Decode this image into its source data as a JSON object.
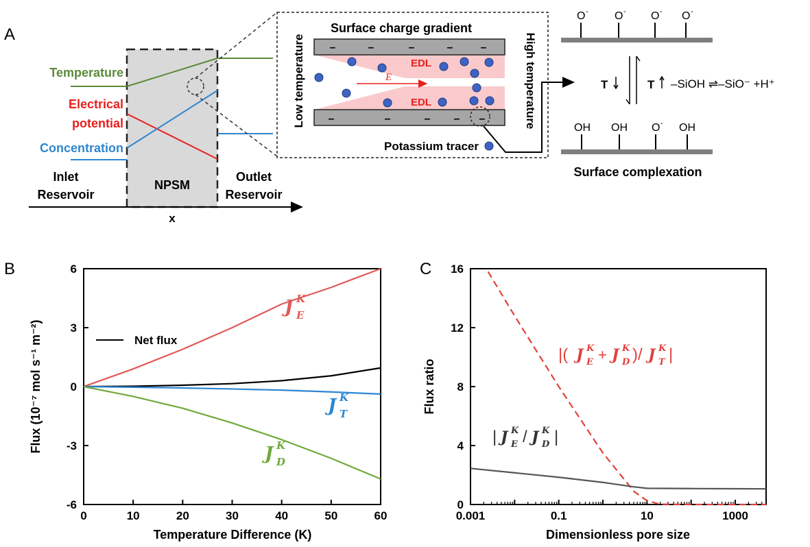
{
  "panel_a": {
    "panel_label": "A",
    "left_labels": {
      "temperature": "Temperature",
      "electrical_1": "Electrical",
      "electrical_2": "potential",
      "concentration": "Concentration"
    },
    "regions": {
      "inlet_1": "Inlet",
      "inlet_2": "Reservoir",
      "npsm": "NPSM",
      "outlet_1": "Outlet",
      "outlet_2": "Reservoir",
      "x_axis": "x"
    },
    "channel": {
      "title": "Surface charge gradient",
      "low_temperature": "Low temperature",
      "high_temperature": "High temperature",
      "edl_top": "EDL",
      "edl_bottom": "EDL",
      "field": "E",
      "tracer": "Potassium tracer",
      "minus": "–"
    },
    "complexation": {
      "o_minus": "O",
      "oh": "OH",
      "minus_sup": "-",
      "t_down": "T",
      "t_up": "T",
      "reaction": "–SiOH ⇌–SiO⁻  +H⁺",
      "title": "Surface complexation"
    },
    "colors": {
      "temperature": "#5b8a3a",
      "electrical": "#e8201c",
      "concentration": "#2e86d1",
      "npsm_fill": "#d9d9d9",
      "edl_fill": "#f9c9cc",
      "tracer": "#3d64c5",
      "wall": "#a6a6a6"
    }
  },
  "chart_data": [
    {
      "panel_label": "B",
      "type": "line",
      "xlabel": "Temperature Difference (K)",
      "ylabel": "Flux (10⁻⁷ mol s⁻¹ m⁻²)",
      "xlim": [
        0,
        60
      ],
      "ylim": [
        -6,
        6
      ],
      "xticks": [
        "0",
        "10",
        "20",
        "30",
        "40",
        "50",
        "60"
      ],
      "yticks": [
        "-6",
        "-3",
        "0",
        "3",
        "6"
      ],
      "legend": "Net flux",
      "series": [
        {
          "name": "J_E^K",
          "sym": "J",
          "sup": "K",
          "sub": "E",
          "color": "#e05a57",
          "x": [
            0,
            10,
            20,
            30,
            40,
            50,
            60
          ],
          "y": [
            0,
            0.9,
            1.9,
            3.0,
            4.2,
            5.05,
            6.0
          ]
        },
        {
          "name": "Net flux",
          "color": "#000000",
          "x": [
            0,
            10,
            20,
            30,
            40,
            50,
            60
          ],
          "y": [
            0,
            0.02,
            0.07,
            0.15,
            0.3,
            0.55,
            0.95
          ]
        },
        {
          "name": "J_T^K",
          "sym": "J",
          "sup": "K",
          "sub": "T",
          "color": "#2e86d1",
          "x": [
            0,
            10,
            20,
            30,
            40,
            50,
            60
          ],
          "y": [
            0,
            -0.03,
            -0.07,
            -0.12,
            -0.18,
            -0.27,
            -0.38
          ]
        },
        {
          "name": "J_D^K",
          "sym": "J",
          "sup": "K",
          "sub": "D",
          "color": "#70a93b",
          "x": [
            0,
            10,
            20,
            30,
            40,
            50,
            60
          ],
          "y": [
            0,
            -0.5,
            -1.1,
            -1.85,
            -2.7,
            -3.65,
            -4.7
          ]
        }
      ]
    },
    {
      "panel_label": "C",
      "type": "line",
      "xlabel": "Dimensionless pore size",
      "ylabel": "Flux ratio",
      "xscale": "log",
      "xlim": [
        0.001,
        5000
      ],
      "ylim": [
        0,
        16
      ],
      "xticks": [
        "0.001",
        "0.1",
        "10",
        "1000"
      ],
      "yticks": [
        "0",
        "4",
        "8",
        "12",
        "16"
      ],
      "series": [
        {
          "name": "|(J_E^K + J_D^K)/J_T^K|",
          "label": "|(J + J)/J|",
          "color": "#e0413d",
          "dash": true,
          "x": [
            0.0025,
            0.01,
            0.1,
            1,
            5,
            10,
            20,
            100,
            1000,
            5000
          ],
          "y": [
            15.8,
            12.8,
            8.0,
            3.5,
            0.9,
            0.25,
            0.02,
            0,
            0,
            0
          ]
        },
        {
          "name": "|J_E^K/J_D^K|",
          "label": "|J/J|",
          "color": "#555555",
          "dash": false,
          "x": [
            0.001,
            0.01,
            0.1,
            1,
            5,
            10,
            100,
            1000,
            5000
          ],
          "y": [
            2.45,
            2.15,
            1.85,
            1.5,
            1.2,
            1.1,
            1.08,
            1.07,
            1.06
          ]
        }
      ]
    }
  ]
}
